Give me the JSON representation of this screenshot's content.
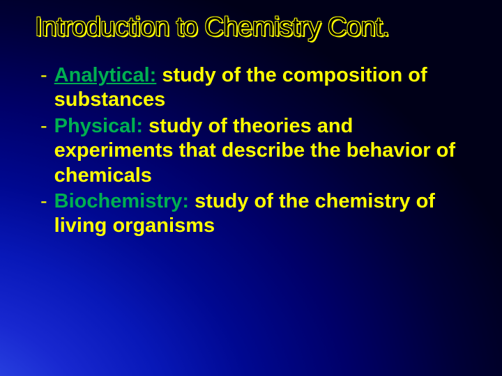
{
  "slide": {
    "title": "Introduction to Chemistry Cont.",
    "background": {
      "gradient_type": "radial",
      "colors": [
        "#3858f0",
        "#2840e0",
        "#1828d0",
        "#0818b8",
        "#000890",
        "#000068",
        "#000038",
        "#000018"
      ]
    },
    "title_style": {
      "color": "#000000",
      "outline_color": "#ffff00",
      "fontsize": 38,
      "font_family": "Arial"
    },
    "body_style": {
      "fontsize": 29,
      "term_color": "#00b050",
      "def_color": "#ffff00",
      "dash_color": "#ffff00",
      "font_weight": "bold",
      "line_height": 1.22
    },
    "items": [
      {
        "term": "Analytical:",
        "definition": " study of the composition of substances"
      },
      {
        "term": "Physical:",
        "definition": " study of theories and experiments that describe the behavior of chemicals"
      },
      {
        "term": "Biochemistry:",
        "definition": " study of the chemistry of living organisms"
      }
    ]
  }
}
